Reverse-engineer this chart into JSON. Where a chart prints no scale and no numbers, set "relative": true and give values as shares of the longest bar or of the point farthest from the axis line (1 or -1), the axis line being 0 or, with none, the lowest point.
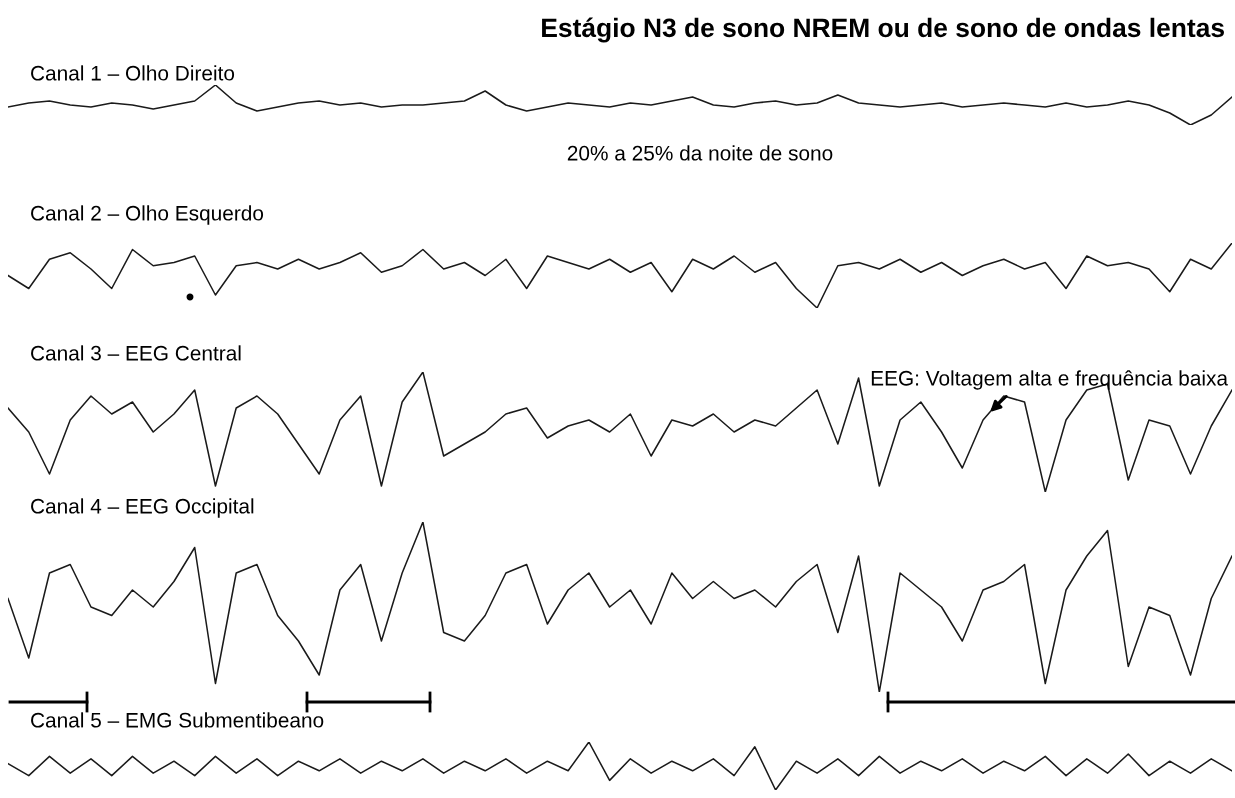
{
  "chart_data": [
    {
      "type": "line",
      "relative": true,
      "title": "Estágio N3 de sono NREM ou de sono de ondas lentas",
      "subtitle": "Canal 1 – Olho Direito",
      "annotations": [
        "20% a 25% da noite de sono"
      ],
      "categories": [
        null,
        null,
        null,
        null,
        null,
        null,
        null,
        null,
        null,
        null,
        null,
        null,
        null,
        null,
        null,
        null,
        null,
        null,
        null,
        null,
        null,
        null,
        null,
        null,
        null,
        null,
        null,
        null,
        null,
        null,
        null,
        null,
        null,
        null,
        null,
        null,
        null,
        null,
        null,
        null,
        null,
        null,
        null,
        null,
        null,
        null,
        null,
        null,
        null,
        null,
        null,
        null,
        null,
        null,
        null,
        null,
        null,
        null,
        null,
        null
      ],
      "series": [
        {
          "color": "#1a1a1a",
          "values": [
            0.45,
            0.55,
            0.6,
            0.5,
            0.45,
            0.55,
            0.5,
            0.4,
            0.5,
            0.6,
            1.0,
            0.55,
            0.35,
            0.45,
            0.55,
            0.6,
            0.5,
            0.55,
            0.45,
            0.5,
            0.5,
            0.55,
            0.6,
            0.85,
            0.5,
            0.35,
            0.45,
            0.55,
            0.5,
            0.45,
            0.55,
            0.5,
            0.6,
            0.7,
            0.5,
            0.45,
            0.55,
            0.6,
            0.5,
            0.55,
            0.75,
            0.55,
            0.5,
            0.45,
            0.5,
            0.55,
            0.45,
            0.5,
            0.55,
            0.5,
            0.45,
            0.55,
            0.45,
            0.5,
            0.6,
            0.5,
            0.3,
            0.0,
            0.25,
            0.7
          ]
        }
      ]
    },
    {
      "type": "line",
      "relative": true,
      "title": "Canal 2 – Olho Esquerdo",
      "categories": [
        null,
        null,
        null,
        null,
        null,
        null,
        null,
        null,
        null,
        null,
        null,
        null,
        null,
        null,
        null,
        null,
        null,
        null,
        null,
        null,
        null,
        null,
        null,
        null,
        null,
        null,
        null,
        null,
        null,
        null,
        null,
        null,
        null,
        null,
        null,
        null,
        null,
        null,
        null,
        null,
        null,
        null,
        null,
        null,
        null,
        null,
        null,
        null,
        null,
        null,
        null,
        null,
        null,
        null,
        null,
        null,
        null,
        null,
        null,
        null
      ],
      "series": [
        {
          "color": "#1a1a1a",
          "values": [
            0.5,
            0.3,
            0.75,
            0.85,
            0.6,
            0.3,
            0.9,
            0.65,
            0.7,
            0.8,
            0.2,
            0.65,
            0.7,
            0.6,
            0.75,
            0.6,
            0.7,
            0.85,
            0.55,
            0.65,
            0.9,
            0.6,
            0.7,
            0.5,
            0.75,
            0.3,
            0.8,
            0.7,
            0.6,
            0.75,
            0.55,
            0.7,
            0.25,
            0.75,
            0.6,
            0.8,
            0.55,
            0.7,
            0.3,
            0.0,
            0.65,
            0.7,
            0.6,
            0.75,
            0.55,
            0.7,
            0.5,
            0.65,
            0.75,
            0.6,
            0.7,
            0.3,
            0.8,
            0.65,
            0.7,
            0.6,
            0.25,
            0.75,
            0.6,
            1.0
          ]
        }
      ]
    },
    {
      "type": "line",
      "relative": true,
      "title": "Canal 3 – EEG Central",
      "annotations": [
        "EEG: Voltagem alta e frequência baixa"
      ],
      "categories": [
        null,
        null,
        null,
        null,
        null,
        null,
        null,
        null,
        null,
        null,
        null,
        null,
        null,
        null,
        null,
        null,
        null,
        null,
        null,
        null,
        null,
        null,
        null,
        null,
        null,
        null,
        null,
        null,
        null,
        null,
        null,
        null,
        null,
        null,
        null,
        null,
        null,
        null,
        null,
        null,
        null,
        null,
        null,
        null,
        null,
        null,
        null,
        null,
        null,
        null,
        null,
        null,
        null,
        null,
        null,
        null,
        null,
        null,
        null,
        null
      ],
      "series": [
        {
          "color": "#1a1a1a",
          "values": [
            0.7,
            0.5,
            0.15,
            0.6,
            0.8,
            0.65,
            0.75,
            0.5,
            0.65,
            0.85,
            0.05,
            0.7,
            0.8,
            0.65,
            0.4,
            0.15,
            0.6,
            0.8,
            0.05,
            0.75,
            1.0,
            0.3,
            0.4,
            0.5,
            0.65,
            0.7,
            0.45,
            0.55,
            0.6,
            0.5,
            0.65,
            0.3,
            0.6,
            0.55,
            0.65,
            0.5,
            0.6,
            0.55,
            0.7,
            0.85,
            0.4,
            0.95,
            0.05,
            0.6,
            0.75,
            0.5,
            0.2,
            0.6,
            0.8,
            0.75,
            0.0,
            0.6,
            0.85,
            0.9,
            0.1,
            0.6,
            0.55,
            0.15,
            0.55,
            0.85
          ]
        }
      ]
    },
    {
      "type": "line",
      "relative": true,
      "title": "Canal 4 – EEG Occipital",
      "categories": [
        null,
        null,
        null,
        null,
        null,
        null,
        null,
        null,
        null,
        null,
        null,
        null,
        null,
        null,
        null,
        null,
        null,
        null,
        null,
        null,
        null,
        null,
        null,
        null,
        null,
        null,
        null,
        null,
        null,
        null,
        null,
        null,
        null,
        null,
        null,
        null,
        null,
        null,
        null,
        null,
        null,
        null,
        null,
        null,
        null,
        null,
        null,
        null,
        null,
        null,
        null,
        null,
        null,
        null,
        null,
        null,
        null,
        null,
        null,
        null
      ],
      "series": [
        {
          "color": "#1a1a1a",
          "values": [
            0.55,
            0.2,
            0.7,
            0.75,
            0.5,
            0.45,
            0.6,
            0.5,
            0.65,
            0.85,
            0.05,
            0.7,
            0.75,
            0.45,
            0.3,
            0.1,
            0.6,
            0.75,
            0.3,
            0.7,
            1.0,
            0.35,
            0.3,
            0.45,
            0.7,
            0.75,
            0.4,
            0.6,
            0.7,
            0.5,
            0.6,
            0.4,
            0.7,
            0.55,
            0.65,
            0.55,
            0.6,
            0.5,
            0.65,
            0.75,
            0.35,
            0.8,
            0.0,
            0.7,
            0.6,
            0.5,
            0.3,
            0.6,
            0.65,
            0.75,
            0.05,
            0.6,
            0.8,
            0.95,
            0.15,
            0.5,
            0.45,
            0.1,
            0.55,
            0.8
          ]
        }
      ]
    },
    {
      "type": "line",
      "relative": true,
      "title": "Canal 5 – EMG Submentibeano",
      "categories": [
        null,
        null,
        null,
        null,
        null,
        null,
        null,
        null,
        null,
        null,
        null,
        null,
        null,
        null,
        null,
        null,
        null,
        null,
        null,
        null,
        null,
        null,
        null,
        null,
        null,
        null,
        null,
        null,
        null,
        null,
        null,
        null,
        null,
        null,
        null,
        null,
        null,
        null,
        null,
        null,
        null,
        null,
        null,
        null,
        null,
        null,
        null,
        null,
        null,
        null,
        null,
        null,
        null,
        null,
        null,
        null,
        null,
        null,
        null,
        null
      ],
      "series": [
        {
          "color": "#1a1a1a",
          "values": [
            0.55,
            0.3,
            0.7,
            0.35,
            0.65,
            0.3,
            0.7,
            0.35,
            0.6,
            0.3,
            0.7,
            0.35,
            0.65,
            0.3,
            0.6,
            0.4,
            0.65,
            0.35,
            0.6,
            0.4,
            0.65,
            0.35,
            0.6,
            0.4,
            0.65,
            0.35,
            0.6,
            0.4,
            1.0,
            0.2,
            0.65,
            0.35,
            0.6,
            0.4,
            0.65,
            0.3,
            0.9,
            0.0,
            0.6,
            0.35,
            0.65,
            0.3,
            0.7,
            0.35,
            0.6,
            0.4,
            0.65,
            0.35,
            0.6,
            0.4,
            0.7,
            0.3,
            0.65,
            0.35,
            0.75,
            0.3,
            0.6,
            0.35,
            0.65,
            0.4
          ]
        }
      ]
    }
  ]
}
